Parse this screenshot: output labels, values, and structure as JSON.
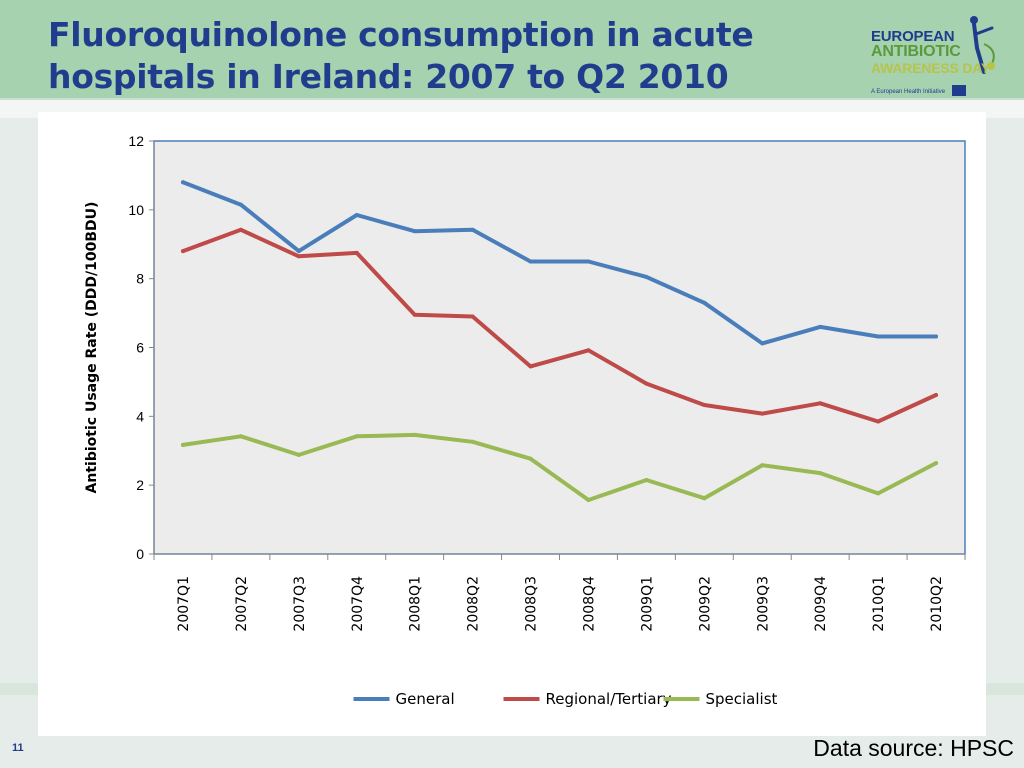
{
  "slide": {
    "title": "Fluoroquinolone consumption in acute hospitals in Ireland: 2007 to Q2 2010",
    "page_number": "11",
    "source": "Data source: HPSC"
  },
  "logo": {
    "line1": "EUROPEAN",
    "line2": "ANTIBIOTIC",
    "line3": "AWARENESS DAY",
    "subtitle": "A European Health Initiative"
  },
  "chart_data": {
    "type": "line",
    "title": "",
    "ylabel": "Antibiotic Usage Rate (DDD/100BDU)",
    "xlabel": "",
    "ylim": [
      0,
      12
    ],
    "yticks": [
      0,
      2,
      4,
      6,
      8,
      10,
      12
    ],
    "grid": false,
    "legend_position": "bottom",
    "categories": [
      "2007Q1",
      "2007Q2",
      "2007Q3",
      "2007Q4",
      "2008Q1",
      "2008Q2",
      "2008Q3",
      "2008Q4",
      "2009Q1",
      "2009Q2",
      "2009Q3",
      "2009Q4",
      "2010Q1",
      "2010Q2"
    ],
    "series": [
      {
        "name": "General",
        "color": "#4a7ebb",
        "values": [
          10.8,
          10.15,
          8.8,
          9.85,
          9.38,
          9.42,
          8.5,
          8.5,
          8.05,
          7.3,
          6.12,
          6.6,
          6.32,
          6.32
        ]
      },
      {
        "name": "Regional/Tertiary",
        "color": "#be4b48",
        "values": [
          8.8,
          9.42,
          8.65,
          8.75,
          6.95,
          6.9,
          5.45,
          5.92,
          4.95,
          4.33,
          4.08,
          4.38,
          3.85,
          4.62
        ]
      },
      {
        "name": "Specialist",
        "color": "#98b954",
        "values": [
          3.17,
          3.42,
          2.88,
          3.42,
          3.46,
          3.26,
          2.77,
          1.57,
          2.15,
          1.62,
          2.58,
          2.35,
          1.76,
          2.64
        ]
      }
    ]
  }
}
